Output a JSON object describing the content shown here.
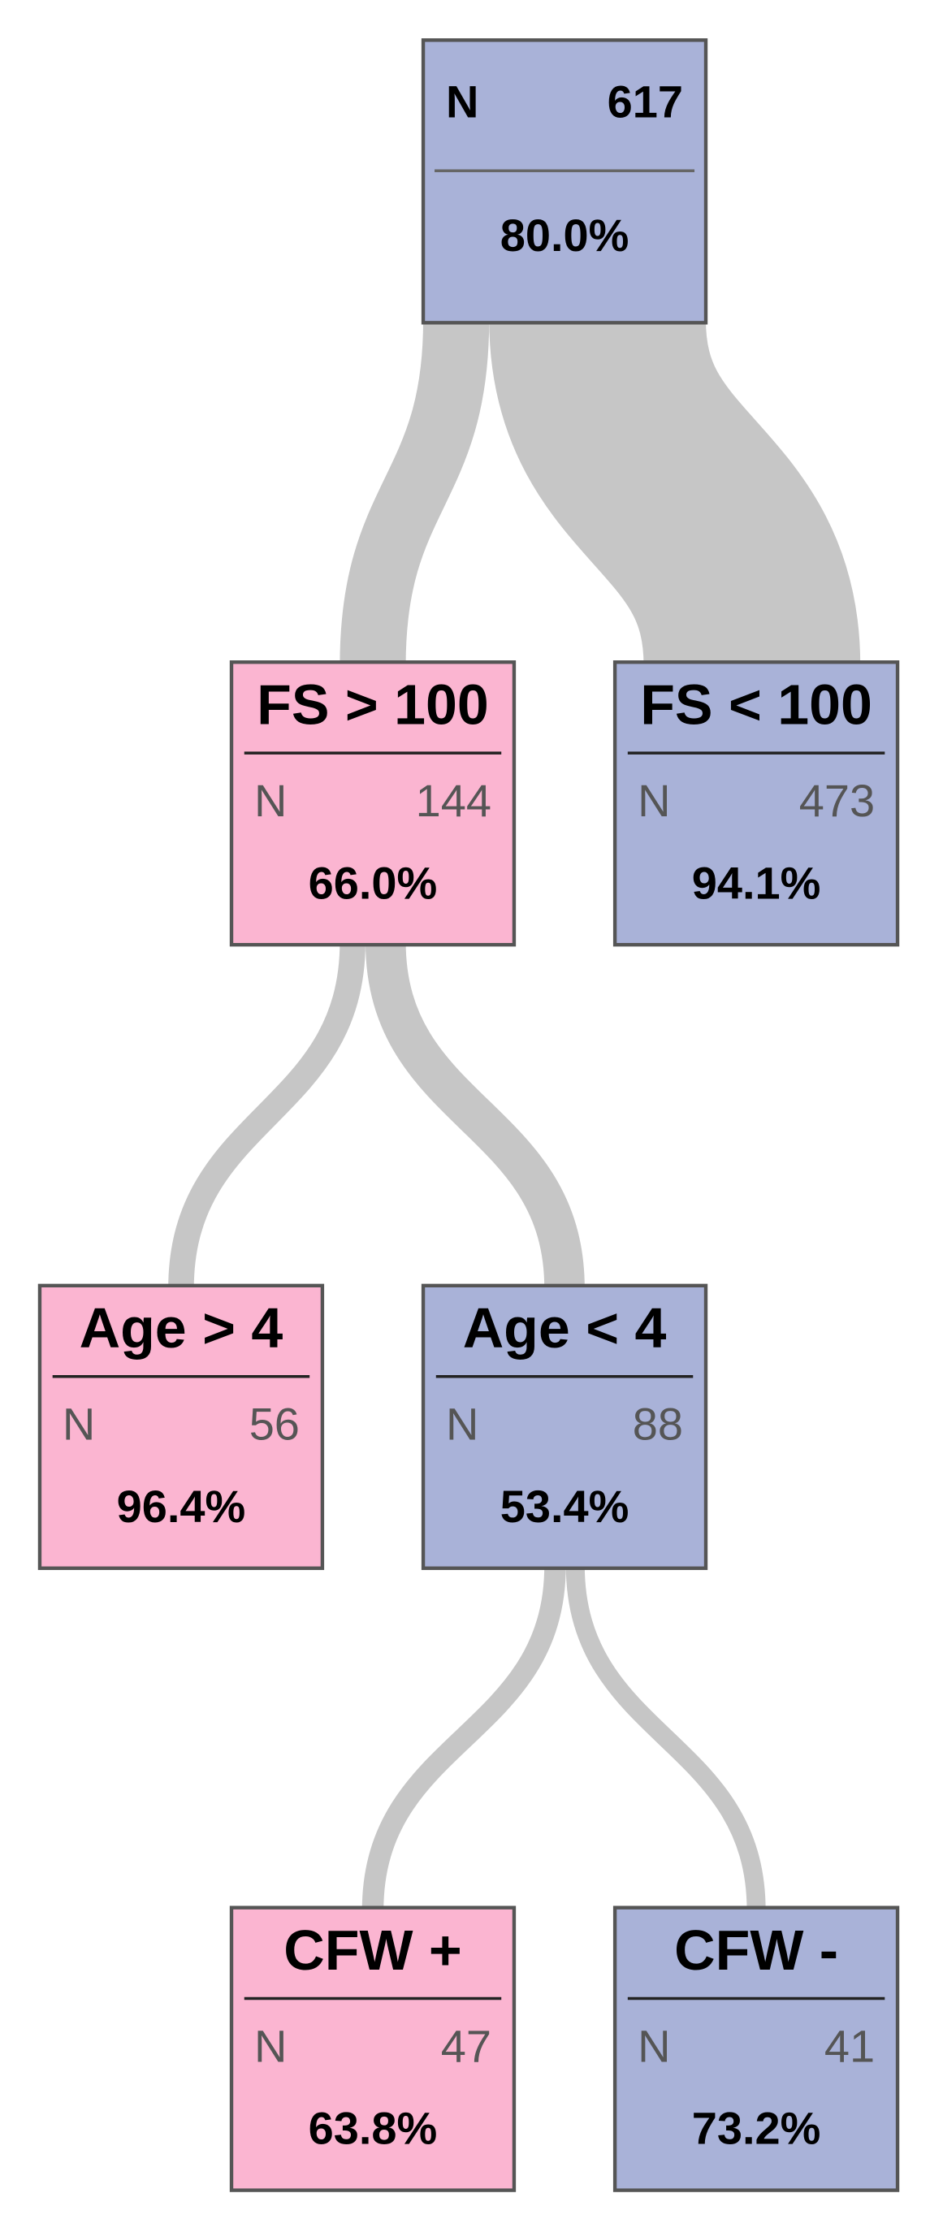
{
  "nodes": [
    {
      "n_label": "N",
      "n": 617,
      "percent": "80.0%",
      "color": "#a9b2d8"
    },
    {
      "label": "FS > 100",
      "n_label": "N",
      "n": 144,
      "percent": "66.0%",
      "color": "#fbb5d1"
    },
    {
      "label": "FS < 100",
      "n_label": "N",
      "n": 473,
      "percent": "94.1%",
      "color": "#a9b2d8"
    },
    {
      "label": "Age > 4",
      "n_label": "N",
      "n": 56,
      "percent": "96.4%",
      "color": "#fbb5d1"
    },
    {
      "label": "Age < 4",
      "n_label": "N",
      "n": 88,
      "percent": "53.4%",
      "color": "#a9b2d8"
    },
    {
      "label": "CFW +",
      "n_label": "N",
      "n": 47,
      "percent": "63.8%",
      "color": "#fbb5d1"
    },
    {
      "label": "CFW -",
      "n_label": "N",
      "n": 41,
      "percent": "73.2%",
      "color": "#a9b2d8"
    }
  ]
}
